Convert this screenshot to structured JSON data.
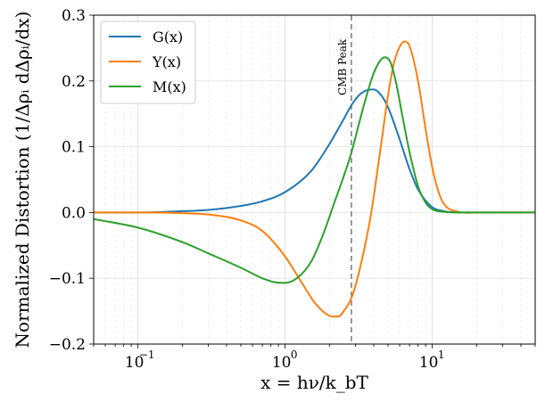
{
  "chart_data": {
    "type": "line",
    "title": "",
    "xlabel": "x = hν/k_bT",
    "ylabel": "Normalized Distortion (1/Δρᵢ dΔρᵢ/dx)",
    "xscale": "log",
    "xlim": [
      0.05,
      50
    ],
    "ylim": [
      -0.2,
      0.3
    ],
    "yticks": [
      -0.2,
      -0.1,
      0.0,
      0.1,
      0.2,
      0.3
    ],
    "ytick_labels": [
      "−0.2",
      "−0.1",
      "0.0",
      "0.1",
      "0.2",
      "0.3"
    ],
    "xticks": [
      0.1,
      1,
      10
    ],
    "xtick_labels": [
      "10",
      "10",
      "10"
    ],
    "xtick_exponents": [
      "−1",
      "0",
      "1"
    ],
    "grid": true,
    "legend_position": "top-left",
    "series": [
      {
        "name": "G(x)",
        "color": "#1f77b4",
        "x": [
          0.05,
          0.1,
          0.2,
          0.3,
          0.5,
          0.7,
          1.0,
          1.5,
          2.0,
          2.5,
          2.82,
          3.2,
          3.6,
          4.0,
          4.5,
          5.0,
          6.0,
          7.0,
          8.0,
          10.0,
          12.0,
          15.0,
          20.0,
          50.0
        ],
        "y": [
          0.0,
          0.0,
          0.002,
          0.004,
          0.01,
          0.017,
          0.031,
          0.063,
          0.104,
          0.142,
          0.163,
          0.179,
          0.186,
          0.187,
          0.178,
          0.16,
          0.111,
          0.066,
          0.035,
          0.008,
          0.002,
          0.0,
          0.0,
          0.0
        ]
      },
      {
        "name": "Y(x)",
        "color": "#ff7f0e",
        "x": [
          0.05,
          0.1,
          0.2,
          0.3,
          0.5,
          0.7,
          1.0,
          1.3,
          1.6,
          2.0,
          2.3,
          2.5,
          2.82,
          3.2,
          3.8,
          4.5,
          5.0,
          5.5,
          6.0,
          6.5,
          7.0,
          8.0,
          9.0,
          10.0,
          11.0,
          12.0,
          15.0,
          20.0,
          50.0
        ],
        "y": [
          0.0,
          0.0,
          -0.001,
          -0.003,
          -0.012,
          -0.028,
          -0.067,
          -0.107,
          -0.138,
          -0.157,
          -0.158,
          -0.15,
          -0.13,
          -0.088,
          -0.007,
          0.105,
          0.178,
          0.228,
          0.252,
          0.26,
          0.253,
          0.2,
          0.127,
          0.068,
          0.032,
          0.013,
          0.001,
          0.0,
          0.0
        ]
      },
      {
        "name": "M(x)",
        "color": "#2ca02c",
        "x": [
          0.05,
          0.1,
          0.2,
          0.3,
          0.5,
          0.7,
          0.85,
          1.0,
          1.2,
          1.5,
          1.8,
          2.2,
          2.5,
          2.82,
          3.2,
          3.6,
          4.0,
          4.5,
          4.8,
          5.2,
          5.7,
          6.2,
          7.0,
          8.0,
          9.0,
          10.0,
          12.0,
          15.0,
          20.0,
          50.0
        ],
        "y": [
          -0.01,
          -0.023,
          -0.045,
          -0.062,
          -0.084,
          -0.1,
          -0.106,
          -0.107,
          -0.1,
          -0.075,
          -0.035,
          0.02,
          0.055,
          0.091,
          0.138,
          0.18,
          0.212,
          0.233,
          0.236,
          0.228,
          0.195,
          0.152,
          0.092,
          0.04,
          0.015,
          0.005,
          0.001,
          0.0,
          0.0,
          0.0
        ]
      }
    ],
    "vline": {
      "x": 2.82,
      "label": "CMB Peak",
      "color": "#808080"
    }
  }
}
